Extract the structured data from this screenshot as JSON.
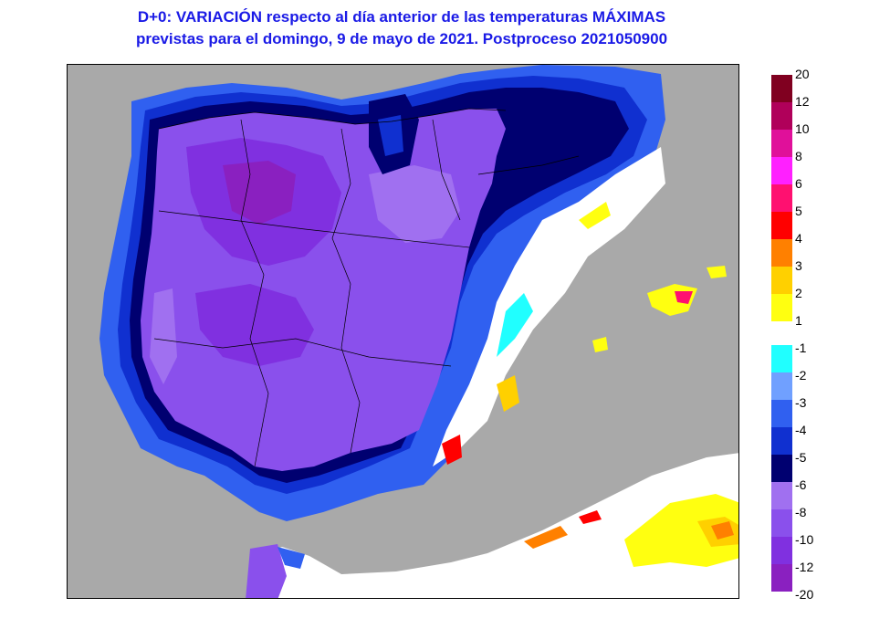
{
  "title": {
    "line1": "D+0:  VARIACIÓN respecto al día anterior de las temperaturas MÁXIMAS",
    "line2": "previstas para el domingo, 9 de mayo de 2021. Postproceso 2021050900"
  },
  "colors": {
    "sea": "#a9a9a9",
    "title": "#1a1ae6",
    "border": "#000000",
    "land_dominant": "#8a50ec"
  },
  "legend": {
    "positive": [
      {
        "label": "20",
        "color": "#800020"
      },
      {
        "label": "12",
        "color": "#b0005a"
      },
      {
        "label": "10",
        "color": "#e0109a"
      },
      {
        "label": "8",
        "color": "#ff20ff"
      },
      {
        "label": "6",
        "color": "#ff1070"
      },
      {
        "label": "5",
        "color": "#ff0000"
      },
      {
        "label": "4",
        "color": "#ff8000"
      },
      {
        "label": "3",
        "color": "#ffd000"
      },
      {
        "label": "2",
        "color": "#ffff10"
      },
      {
        "label": "1",
        "color": "#ffffff"
      }
    ],
    "negative": [
      {
        "label": "-1",
        "color": "#20ffff"
      },
      {
        "label": "-2",
        "color": "#70a0ff"
      },
      {
        "label": "-3",
        "color": "#3060f0"
      },
      {
        "label": "-4",
        "color": "#1030d0"
      },
      {
        "label": "-5",
        "color": "#000070"
      },
      {
        "label": "-6",
        "color": "#a070f0"
      },
      {
        "label": "-8",
        "color": "#8a50ec"
      },
      {
        "label": "-10",
        "color": "#8030e0"
      },
      {
        "label": "-12",
        "color": "#8a20c0"
      },
      {
        "label": "-20",
        "color": ""
      }
    ]
  }
}
